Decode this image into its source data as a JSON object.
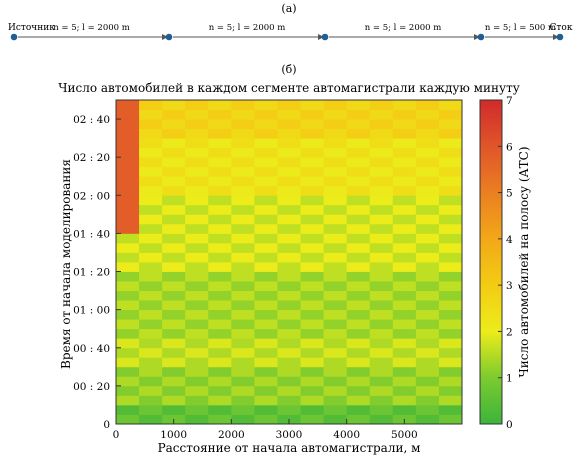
{
  "diagram": {
    "panel_label": "(а)",
    "source_label": "Источник",
    "sink_label": "Сток",
    "segments": [
      {
        "label": "n = 5; l = 2000 m"
      },
      {
        "label": "n = 5; l = 2000 m"
      },
      {
        "label": "n = 5; l = 2000 m"
      },
      {
        "label": "n = 5; l = 500 m"
      }
    ],
    "node_color": "#1f5f95"
  },
  "chart_data": {
    "type": "heatmap",
    "panel_label": "(б)",
    "title": "Число автомобилей в каждом сегменте автомагистрали каждую минуту",
    "xlabel": "Расстояние от начала автомагистрали, м",
    "ylabel": "Время от начала моделирования",
    "x_range": [
      0,
      6000
    ],
    "y_range_minutes": [
      0,
      170
    ],
    "x_ticks": [
      "0",
      "1000",
      "2000",
      "3000",
      "4000",
      "5000"
    ],
    "x_tick_values": [
      0,
      1000,
      2000,
      3000,
      4000,
      5000
    ],
    "y_ticks": [
      "0",
      "00 : 20",
      "00 : 40",
      "01 : 00",
      "01 : 20",
      "01 : 40",
      "02 : 00",
      "02 : 20",
      "02 : 40"
    ],
    "y_tick_values": [
      0,
      20,
      40,
      60,
      80,
      100,
      120,
      140,
      160
    ],
    "colorbar": {
      "label": "Число автомобилей на полосу (АТС)",
      "range": [
        0,
        7
      ],
      "ticks": [
        "0",
        "1",
        "2",
        "3",
        "4",
        "5",
        "6",
        "7"
      ],
      "tick_values": [
        0,
        1,
        2,
        3,
        4,
        5,
        6,
        7
      ],
      "colors": [
        "#3cb43c",
        "#7ccb2e",
        "#ecec1a",
        "#f3cc14",
        "#f2a818",
        "#ea7f21",
        "#e0552a",
        "#d12a2a"
      ]
    },
    "segment_length_m": 400,
    "time_step_min": 5,
    "time_bands": [
      {
        "t_from": 0,
        "t_to": 10,
        "value": 0.5
      },
      {
        "t_from": 10,
        "t_to": 30,
        "value": 1.2
      },
      {
        "t_from": 30,
        "t_to": 45,
        "value": 1.6
      },
      {
        "t_from": 45,
        "t_to": 80,
        "value": 1.35
      },
      {
        "t_from": 80,
        "t_to": 120,
        "value": 1.75
      },
      {
        "t_from": 120,
        "t_to": 150,
        "value": 2.2
      },
      {
        "t_from": 150,
        "t_to": 170,
        "value": 2.7
      }
    ],
    "edge_column": {
      "x_from": 0,
      "x_to": 200,
      "t_from": 100,
      "t_to": 170,
      "value": 5.8
    }
  }
}
